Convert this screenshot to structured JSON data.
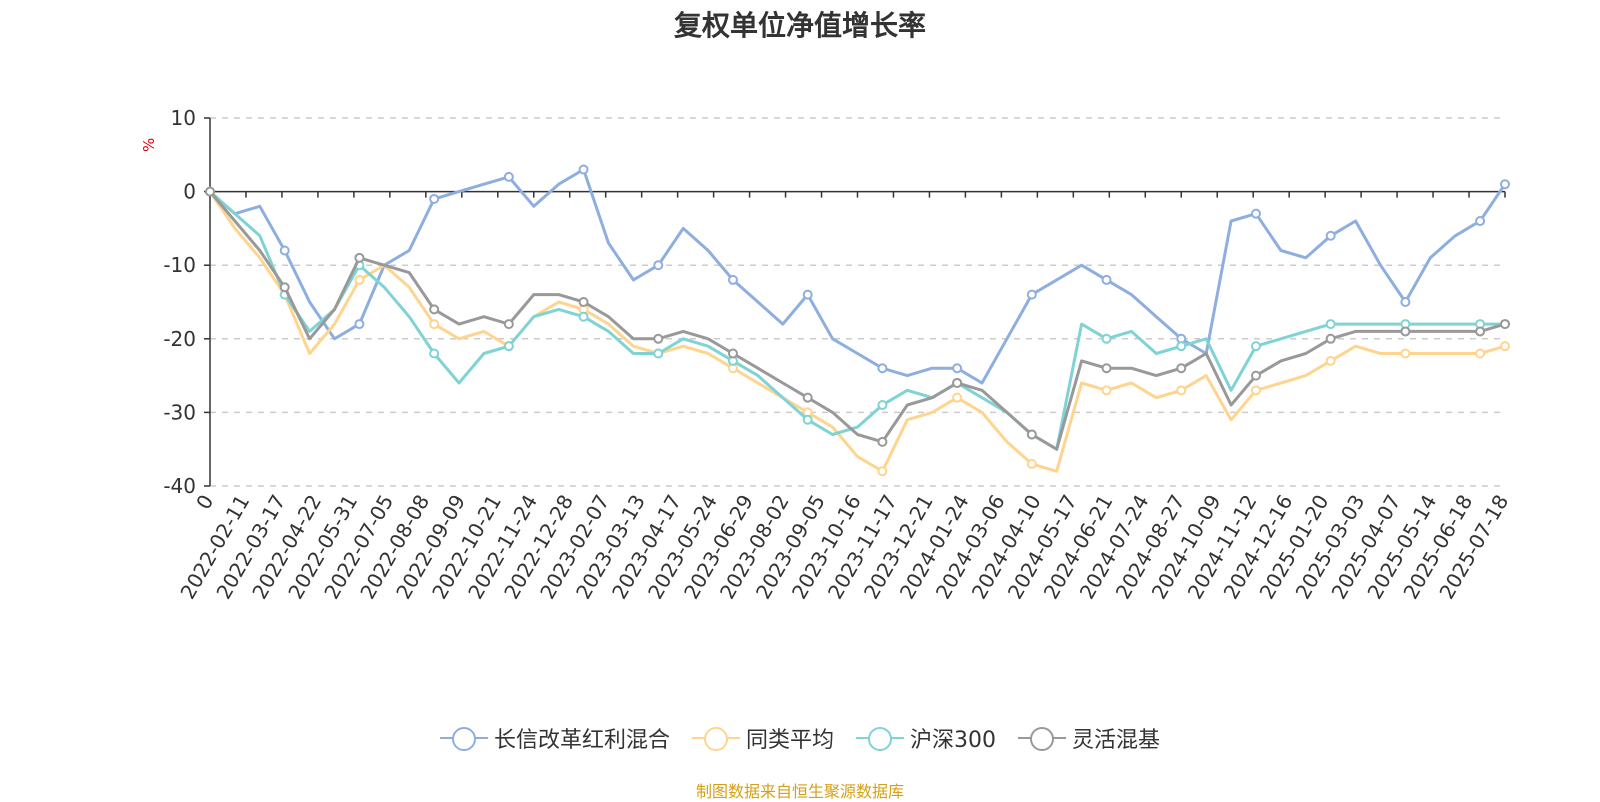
{
  "chart_data": {
    "type": "line",
    "title": "复权单位净值增长率",
    "ylabel": "%",
    "ylim": [
      -40,
      10
    ],
    "yticks": [
      10,
      0,
      -10,
      -20,
      -30,
      -40
    ],
    "grid": true,
    "legend_position": "bottom",
    "x_tick_labels": [
      "0",
      "2022-02-11",
      "2022-03-17",
      "2022-04-22",
      "2022-05-31",
      "2022-07-05",
      "2022-08-08",
      "2022-09-09",
      "2022-10-21",
      "2022-11-24",
      "2022-12-28",
      "2023-02-07",
      "2023-03-13",
      "2023-04-17",
      "2023-05-24",
      "2023-06-29",
      "2023-08-02",
      "2023-09-05",
      "2023-10-16",
      "2023-11-17",
      "2023-12-21",
      "2024-01-24",
      "2024-03-06",
      "2024-04-10",
      "2024-05-17",
      "2024-06-21",
      "2024-07-24",
      "2024-08-27",
      "2024-10-09",
      "2024-11-12",
      "2024-12-16",
      "2025-01-20",
      "2025-03-03",
      "2025-04-07",
      "2025-05-14",
      "2025-06-18",
      "2025-07-18"
    ],
    "series": [
      {
        "name": "长信改革红利混合",
        "color": "#8eaee0",
        "values": [
          0,
          -3,
          -2,
          -8,
          -15,
          -20,
          -18,
          -10,
          -8,
          -1,
          0,
          1,
          2,
          -2,
          1,
          3,
          -7,
          -12,
          -10,
          -5,
          -8,
          -12,
          -15,
          -18,
          -14,
          -20,
          -22,
          -24,
          -25,
          -24,
          -24,
          -26,
          -20,
          -14,
          -12,
          -10,
          -12,
          -14,
          -17,
          -20,
          -22,
          -4,
          -3,
          -8,
          -9,
          -6,
          -4,
          -10,
          -15,
          -9,
          -6,
          -4,
          1
        ]
      },
      {
        "name": "同类平均",
        "color": "#ffd48f",
        "values": [
          0,
          -5,
          -9,
          -14,
          -22,
          -18,
          -12,
          -10,
          -13,
          -18,
          -20,
          -19,
          -21,
          -17,
          -15,
          -16,
          -18,
          -21,
          -22,
          -21,
          -22,
          -24,
          -26,
          -28,
          -30,
          -32,
          -36,
          -38,
          -31,
          -30,
          -28,
          -30,
          -34,
          -37,
          -38,
          -26,
          -27,
          -26,
          -28,
          -27,
          -25,
          -31,
          -27,
          -26,
          -25,
          -23,
          -21,
          -22,
          -22,
          -22,
          -22,
          -22,
          -21
        ]
      },
      {
        "name": "沪深300",
        "color": "#7fd3d4",
        "values": [
          0,
          -3,
          -6,
          -14,
          -19,
          -16,
          -10,
          -13,
          -17,
          -22,
          -26,
          -22,
          -21,
          -17,
          -16,
          -17,
          -19,
          -22,
          -22,
          -20,
          -21,
          -23,
          -25,
          -28,
          -31,
          -33,
          -32,
          -29,
          -27,
          -28,
          -26,
          -28,
          -30,
          -33,
          -35,
          -18,
          -20,
          -19,
          -22,
          -21,
          -20,
          -27,
          -21,
          -20,
          -19,
          -18,
          -18,
          -18,
          -18,
          -18,
          -18,
          -18,
          -18
        ]
      },
      {
        "name": "灵活混基",
        "color": "#999999",
        "values": [
          0,
          -4,
          -8,
          -13,
          -20,
          -16,
          -9,
          -10,
          -11,
          -16,
          -18,
          -17,
          -18,
          -14,
          -14,
          -15,
          -17,
          -20,
          -20,
          -19,
          -20,
          -22,
          -24,
          -26,
          -28,
          -30,
          -33,
          -34,
          -29,
          -28,
          -26,
          -27,
          -30,
          -33,
          -35,
          -23,
          -24,
          -24,
          -25,
          -24,
          -22,
          -29,
          -25,
          -23,
          -22,
          -20,
          -19,
          -19,
          -19,
          -19,
          -19,
          -19,
          -18
        ]
      }
    ]
  },
  "source_note": "制图数据来自恒生聚源数据库"
}
